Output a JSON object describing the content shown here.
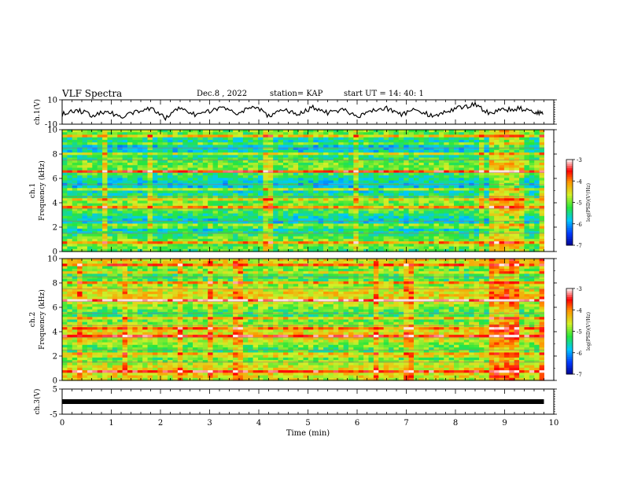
{
  "header": {
    "title": "VLF Spectra",
    "date": "Dec.8 , 2022",
    "station": "station= KAP",
    "start": "start  UT =  14: 40: 1"
  },
  "chart_data": [
    {
      "type": "line",
      "panel": "ch1-waveform",
      "ylabel": "ch.1(V)",
      "ylim": [
        -10,
        10
      ],
      "yticks": [
        "10",
        "-10"
      ],
      "xlim": [
        0,
        10
      ],
      "x": [
        0,
        0.3,
        0.6,
        0.9,
        1.2,
        1.5,
        1.8,
        2.1,
        2.4,
        2.7,
        3.0,
        3.3,
        3.6,
        3.9,
        4.2,
        4.5,
        4.8,
        5.1,
        5.4,
        5.7,
        6.0,
        6.3,
        6.6,
        6.9,
        7.2,
        7.5,
        7.8,
        8.1,
        8.4,
        8.7,
        9.0,
        9.3,
        9.6,
        9.8
      ],
      "y": [
        -2,
        2,
        -3,
        1,
        -4,
        0,
        3,
        -5,
        4,
        -2,
        1,
        3,
        -1,
        5,
        -3,
        2,
        -2,
        4,
        -1,
        2,
        -4,
        1,
        3,
        -2,
        2,
        -3,
        0,
        4,
        6,
        -1,
        2,
        3,
        0,
        -2
      ]
    },
    {
      "type": "heatmap",
      "panel": "ch1-spectrogram",
      "ylabel": "ch.1\nFrequency (kHz)",
      "ylim": [
        0,
        10
      ],
      "yticks": [
        "0",
        "2",
        "4",
        "6",
        "8",
        "10"
      ],
      "xlim": [
        0,
        10
      ],
      "colorbar": {
        "label": "log(PSD)(V²/Hz)",
        "ticks": [
          "-3",
          "-4",
          "-5",
          "-6",
          "-7"
        ],
        "range": [
          -7,
          -3
        ]
      }
    },
    {
      "type": "heatmap",
      "panel": "ch2-spectrogram",
      "ylabel": "ch.2\nFrequency (kHz)",
      "ylim": [
        0,
        10
      ],
      "yticks": [
        "0",
        "2",
        "4",
        "6",
        "8",
        "10"
      ],
      "xlim": [
        0,
        10
      ],
      "colorbar": {
        "label": "log(PSD)(V²/Hz)",
        "ticks": [
          "-3",
          "-4",
          "-5",
          "-6",
          "-7"
        ],
        "range": [
          -7,
          -3
        ]
      }
    },
    {
      "type": "line",
      "panel": "ch3-waveform",
      "ylabel": "ch.3(V)",
      "ylim": [
        -5,
        5
      ],
      "yticks": [
        "5",
        "-5"
      ],
      "xlim": [
        0,
        10
      ],
      "x": [
        0,
        9.8
      ],
      "y": [
        0,
        0
      ]
    }
  ],
  "xaxis": {
    "label": "Time (min)",
    "ticks": [
      "0",
      "1",
      "2",
      "3",
      "4",
      "5",
      "6",
      "7",
      "8",
      "9",
      "10"
    ]
  }
}
